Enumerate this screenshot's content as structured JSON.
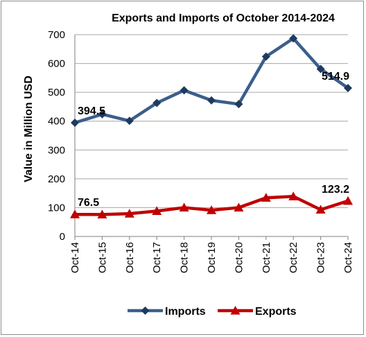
{
  "chart_data": {
    "type": "line",
    "title": "Exports and Imports of October 2014-2024",
    "xlabel": "",
    "ylabel": "Value in Million  USD",
    "categories": [
      "Oct-14",
      "Oct-15",
      "Oct-16",
      "Oct-17",
      "Oct-18",
      "Oct-19",
      "Oct-20",
      "Oct-21",
      "Oct-22",
      "Oct-23",
      "Oct-24"
    ],
    "ylim": [
      0,
      700
    ],
    "yticks": [
      0,
      100,
      200,
      300,
      400,
      500,
      600,
      700
    ],
    "grid": true,
    "legend_position": "bottom",
    "series": [
      {
        "name": "Imports",
        "color": "#3b5e8c",
        "marker": "diamond",
        "values": [
          394.5,
          424,
          401,
          463,
          507,
          472,
          459,
          624,
          687,
          581,
          514.9
        ]
      },
      {
        "name": "Exports",
        "color": "#c00000",
        "marker": "triangle",
        "values": [
          76.5,
          76,
          79,
          88,
          100,
          91,
          100,
          134,
          139,
          93,
          123.2
        ]
      }
    ],
    "annotations": [
      {
        "series": 0,
        "index": 0,
        "text": "394.5"
      },
      {
        "series": 0,
        "index": 10,
        "text": "514.9"
      },
      {
        "series": 1,
        "index": 0,
        "text": "76.5"
      },
      {
        "series": 1,
        "index": 10,
        "text": "123.2"
      }
    ]
  }
}
